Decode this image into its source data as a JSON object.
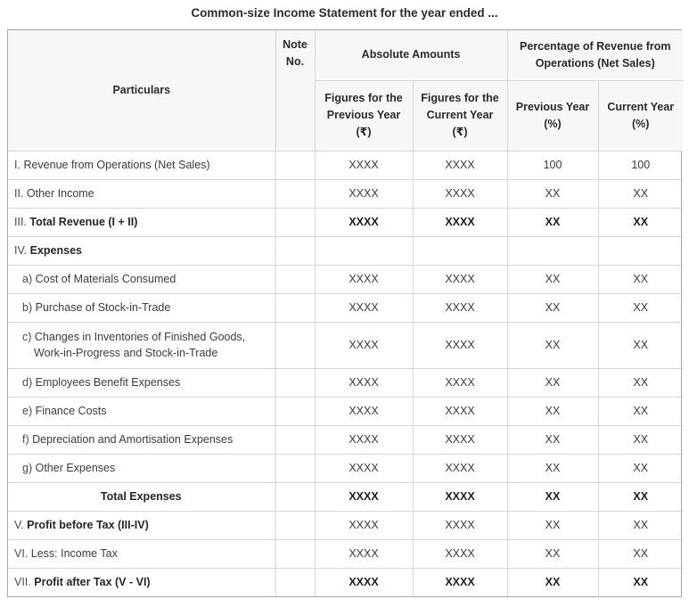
{
  "page_title": "Common-size Income Statement for the year ended ...",
  "table": {
    "columns": {
      "particulars": "Particulars",
      "note_no": "Note\nNo.",
      "absolute_amounts": "Absolute Amounts",
      "percentage_revenue": "Percentage of Revenue from\nOperations (Net Sales)",
      "figures_previous_year": "Figures for the\nPrevious Year\n(₹)",
      "figures_current_year": "Figures for the\nCurrent Year\n(₹)",
      "previous_year_pct": "Previous Year\n(%)",
      "current_year_pct": "Current Year\n(%)"
    },
    "rows": [
      {
        "prefix": "I.",
        "label": "Revenue from Operations (Net Sales)",
        "label2": "",
        "note": "",
        "values": [
          "XXXX",
          "XXXX",
          "100",
          "100"
        ],
        "bold_label": false,
        "bold_values": false,
        "indent": false,
        "center": false,
        "tall": false
      },
      {
        "prefix": "II.",
        "label": "Other Income",
        "label2": "",
        "note": "",
        "values": [
          "XXXX",
          "XXXX",
          "XX",
          "XX"
        ],
        "bold_label": false,
        "bold_values": false,
        "indent": false,
        "center": false,
        "tall": false
      },
      {
        "prefix": "III.",
        "label": "Total Revenue (I + II)",
        "label2": "",
        "note": "",
        "values": [
          "XXXX",
          "XXXX",
          "XX",
          "XX"
        ],
        "bold_label": true,
        "bold_values": true,
        "indent": false,
        "center": false,
        "tall": false
      },
      {
        "prefix": "IV.",
        "label": "Expenses",
        "label2": "",
        "note": "",
        "values": [
          "",
          "",
          "",
          ""
        ],
        "bold_label": true,
        "bold_values": false,
        "indent": false,
        "center": false,
        "tall": false
      },
      {
        "prefix": "a)",
        "label": "Cost of Materials Consumed",
        "label2": "",
        "note": "",
        "values": [
          "XXXX",
          "XXXX",
          "XX",
          "XX"
        ],
        "bold_label": false,
        "bold_values": false,
        "indent": true,
        "center": false,
        "tall": false
      },
      {
        "prefix": "b)",
        "label": "Purchase of Stock-in-Trade",
        "label2": "",
        "note": "",
        "values": [
          "XXXX",
          "XXXX",
          "XX",
          "XX"
        ],
        "bold_label": false,
        "bold_values": false,
        "indent": true,
        "center": false,
        "tall": false
      },
      {
        "prefix": "c)",
        "label": "Changes in Inventories of Finished Goods,",
        "label2": "Work-in-Progress and Stock-in-Trade",
        "note": "",
        "values": [
          "XXXX",
          "XXXX",
          "XX",
          "XX"
        ],
        "bold_label": false,
        "bold_values": false,
        "indent": true,
        "center": false,
        "tall": true
      },
      {
        "prefix": "d)",
        "label": "Employees Benefit Expenses",
        "label2": "",
        "note": "",
        "values": [
          "XXXX",
          "XXXX",
          "XX",
          "XX"
        ],
        "bold_label": false,
        "bold_values": false,
        "indent": true,
        "center": false,
        "tall": false
      },
      {
        "prefix": "e)",
        "label": "Finance Costs",
        "label2": "",
        "note": "",
        "values": [
          "XXXX",
          "XXXX",
          "XX",
          "XX"
        ],
        "bold_label": false,
        "bold_values": false,
        "indent": true,
        "center": false,
        "tall": false
      },
      {
        "prefix": "f)",
        "label": "Depreciation and Amortisation Expenses",
        "label2": "",
        "note": "",
        "values": [
          "XXXX",
          "XXXX",
          "XX",
          "XX"
        ],
        "bold_label": false,
        "bold_values": false,
        "indent": true,
        "center": false,
        "tall": false
      },
      {
        "prefix": "g)",
        "label": "Other Expenses",
        "label2": "",
        "note": "",
        "values": [
          "XXXX",
          "XXXX",
          "XX",
          "XX"
        ],
        "bold_label": false,
        "bold_values": false,
        "indent": true,
        "center": false,
        "tall": false
      },
      {
        "prefix": "",
        "label": "Total Expenses",
        "label2": "",
        "note": "",
        "values": [
          "XXXX",
          "XXXX",
          "XX",
          "XX"
        ],
        "bold_label": true,
        "bold_values": true,
        "indent": false,
        "center": true,
        "tall": false
      },
      {
        "prefix": "V.",
        "label": "Profit before Tax (III-IV)",
        "label2": "",
        "note": "",
        "values": [
          "XXXX",
          "XXXX",
          "XX",
          "XX"
        ],
        "bold_label": true,
        "bold_values": false,
        "indent": false,
        "center": false,
        "tall": false
      },
      {
        "prefix": "VI.",
        "label": "Less: Income Tax",
        "label2": "",
        "note": "",
        "values": [
          "XXXX",
          "XXXX",
          "XX",
          "XX"
        ],
        "bold_label": false,
        "bold_values": false,
        "indent": false,
        "center": false,
        "tall": false
      },
      {
        "prefix": "VII.",
        "label": "Profit after Tax (V - VI)",
        "label2": "",
        "note": "",
        "values": [
          "XXXX",
          "XXXX",
          "XX",
          "XX"
        ],
        "bold_label": true,
        "bold_values": true,
        "indent": false,
        "center": false,
        "tall": false
      }
    ]
  }
}
